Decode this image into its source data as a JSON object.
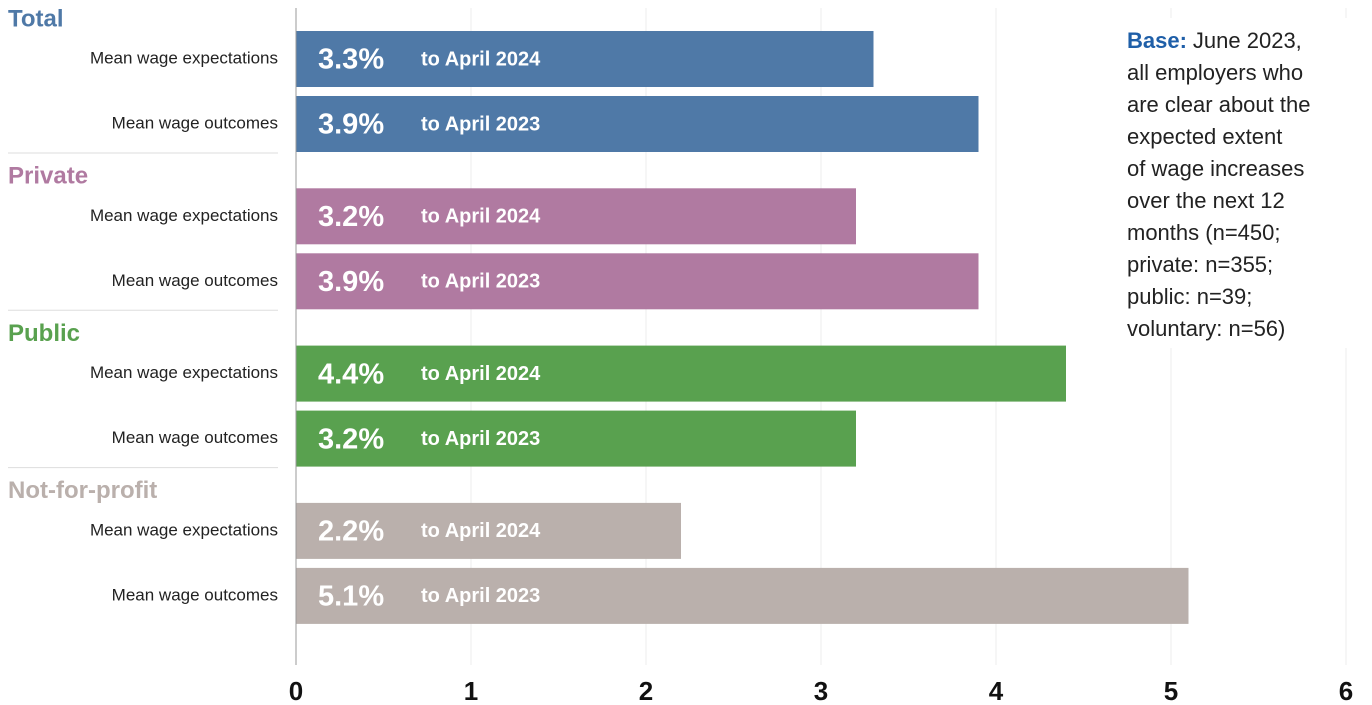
{
  "chart_data": {
    "type": "bar",
    "orientation": "horizontal",
    "groups": [
      {
        "name": "Total",
        "color": "#4f79a7",
        "categories": [
          "Mean wage expectations",
          "Mean wage outcomes"
        ],
        "values": [
          3.3,
          3.9
        ],
        "value_labels": [
          "3.3%",
          "3.9%"
        ],
        "periods": [
          "to April 2024",
          "to April 2023"
        ]
      },
      {
        "name": "Private",
        "color": "#b07aa1",
        "categories": [
          "Mean wage expectations",
          "Mean wage outcomes"
        ],
        "values": [
          3.2,
          3.9
        ],
        "value_labels": [
          "3.2%",
          "3.9%"
        ],
        "periods": [
          "to April 2024",
          "to April 2023"
        ]
      },
      {
        "name": "Public",
        "color": "#59a14f",
        "categories": [
          "Mean wage expectations",
          "Mean wage outcomes"
        ],
        "values": [
          4.4,
          3.2
        ],
        "value_labels": [
          "4.4%",
          "3.2%"
        ],
        "periods": [
          "to April 2024",
          "to April 2023"
        ]
      },
      {
        "name": "Not-for-profit",
        "color": "#bab0ac",
        "categories": [
          "Mean wage expectations",
          "Mean wage outcomes"
        ],
        "values": [
          2.2,
          5.1
        ],
        "value_labels": [
          "2.2%",
          "5.1%"
        ],
        "periods": [
          "to April 2024",
          "to April 2023"
        ]
      }
    ],
    "xlim": [
      0,
      6
    ],
    "xticks": [
      0,
      1,
      2,
      3,
      4,
      5,
      6
    ],
    "grid": true,
    "note": {
      "label": "Base:",
      "lines": [
        "June 2023,",
        "all employers who",
        "are clear about the",
        "expected extent",
        "of wage increases",
        "over the next 12",
        "months (n=450;",
        "private: n=355;",
        "public: n=39;",
        "voluntary: n=56)"
      ]
    }
  }
}
